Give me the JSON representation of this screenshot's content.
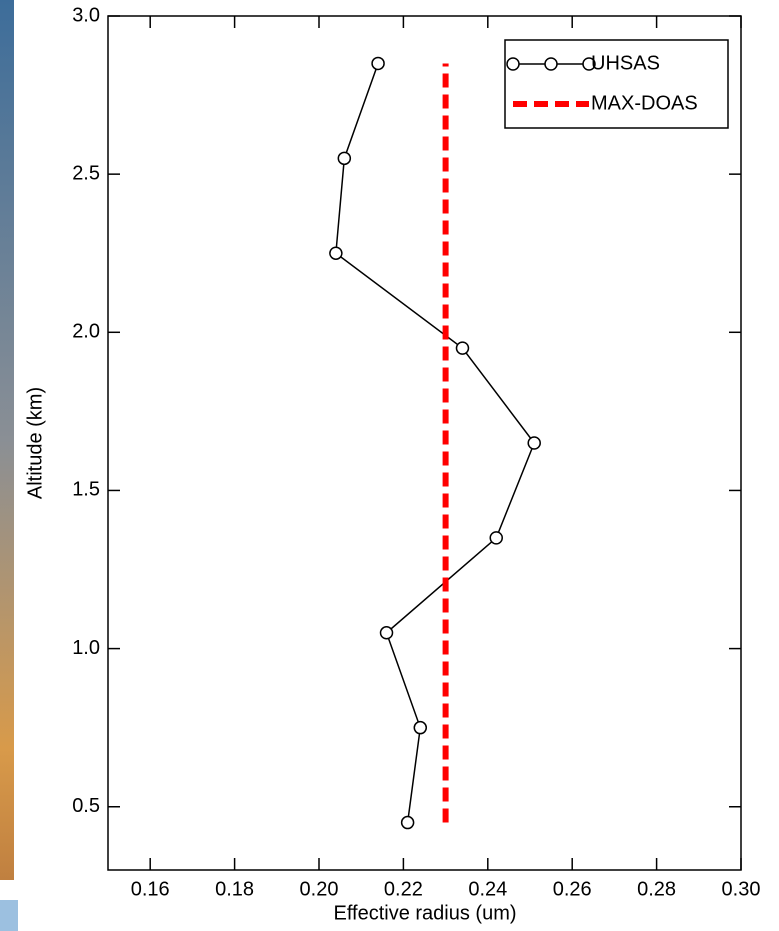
{
  "chart_data": {
    "type": "line",
    "xlabel": "Effective radius (um)",
    "ylabel": "Altitude (km)",
    "xlim": [
      0.15,
      0.3
    ],
    "ylim": [
      0.3,
      3.0
    ],
    "xticks": [
      0.16,
      0.18,
      {
        "value": 0.2,
        "label": "0.20"
      },
      0.22,
      0.24,
      0.26,
      0.28,
      {
        "value": 0.3,
        "label": "0.30"
      }
    ],
    "yticks": [
      0.5,
      {
        "value": 1,
        "label": "1.0"
      },
      1.5,
      {
        "value": 2,
        "label": "2.0"
      },
      2.5,
      {
        "value": 3,
        "label": "3.0"
      }
    ],
    "legend": "upper right",
    "series": [
      {
        "name": "UHSAS",
        "color": "#000000",
        "marker": "circle",
        "x": [
          0.214,
          0.206,
          0.204,
          0.234,
          0.251,
          0.242,
          0.216,
          0.224,
          0.221
        ],
        "values": [
          2.85,
          2.55,
          2.25,
          1.95,
          1.65,
          1.35,
          1.05,
          0.75,
          0.45
        ]
      },
      {
        "name": "MAX-DOAS",
        "color": "#ff0000",
        "dash": "dashed",
        "x": [
          0.23,
          0.23
        ],
        "values": [
          0.45,
          2.85
        ]
      }
    ]
  }
}
